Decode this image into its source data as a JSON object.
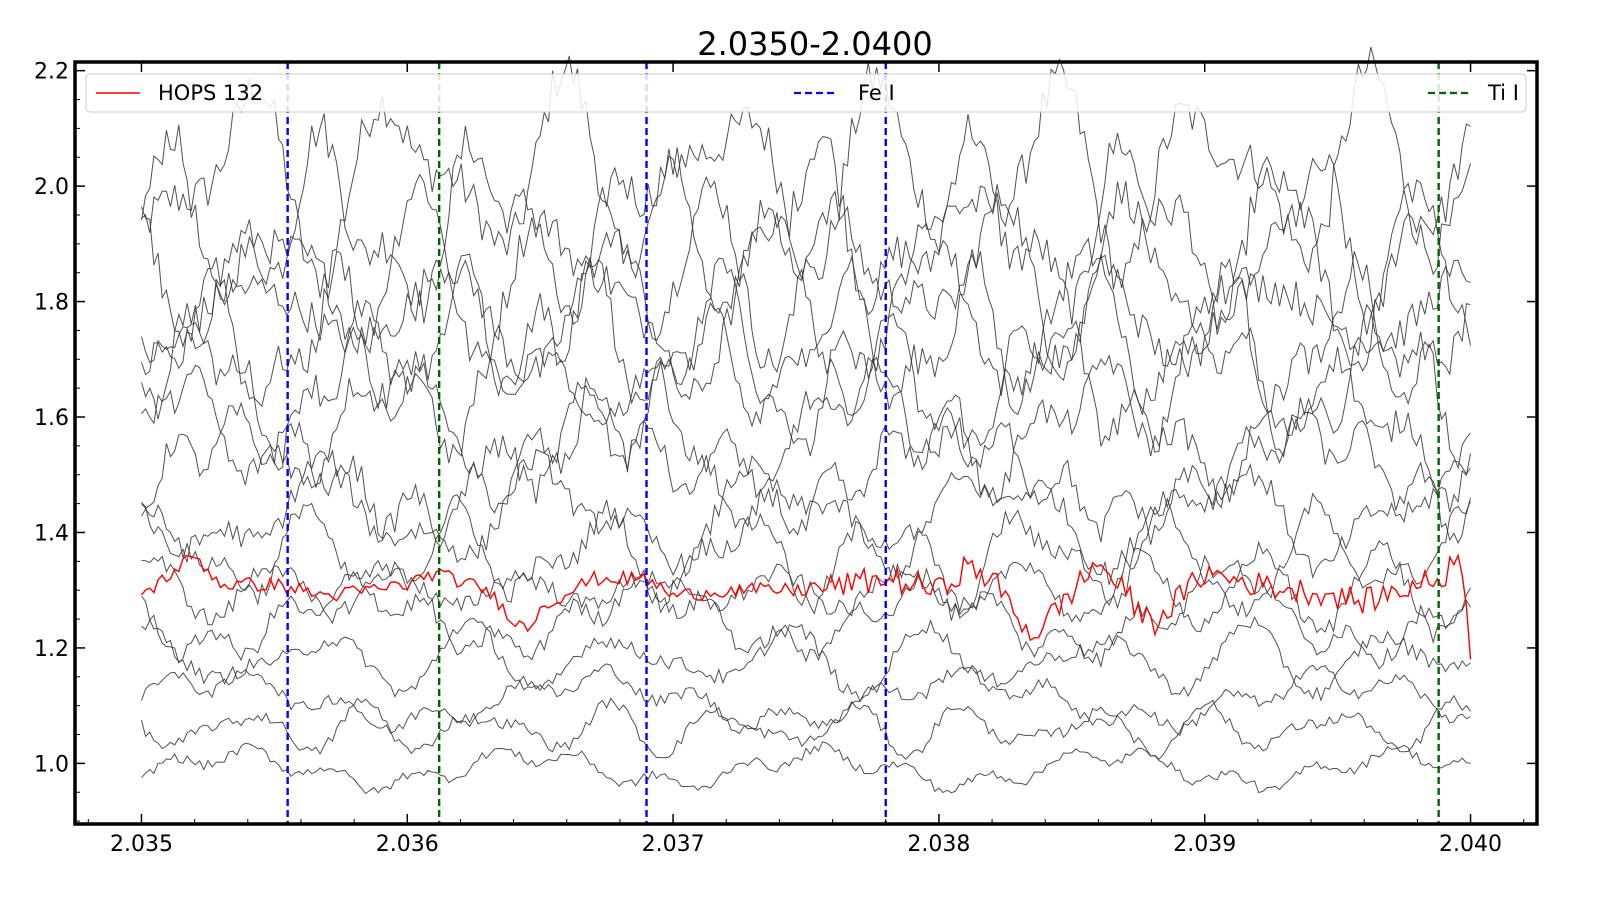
{
  "chart_data": {
    "type": "line",
    "title": "2.0350-2.0400",
    "xlabel": "",
    "ylabel": "",
    "xlim": [
      2.03475,
      2.04025
    ],
    "ylim": [
      0.895,
      2.215
    ],
    "xticks": [
      2.035,
      2.036,
      2.037,
      2.038,
      2.039,
      2.04
    ],
    "xtick_labels": [
      "2.035",
      "2.036",
      "2.037",
      "2.038",
      "2.039",
      "2.040"
    ],
    "yticks": [
      1.0,
      1.2,
      1.4,
      1.6,
      1.8,
      2.0,
      2.2
    ],
    "ytick_labels": [
      "1.0",
      "1.2",
      "1.4",
      "1.6",
      "1.8",
      "2.0",
      "2.2"
    ],
    "grid": false,
    "legend_placement": "top, full width",
    "legend": [
      {
        "label": "HOPS 132",
        "color": "#ff0000",
        "style": "solid"
      },
      {
        "label": "Fe I",
        "color": "#0000ff",
        "style": "dashed"
      },
      {
        "label": "Ti I",
        "color": "#006400",
        "style": "dashed"
      }
    ],
    "highlight_series": {
      "name": "HOPS 132",
      "color": "#ff0000",
      "x_range": [
        2.035,
        2.04
      ],
      "keypoints": [
        [
          2.035,
          1.29
        ],
        [
          2.0352,
          1.36
        ],
        [
          2.0353,
          1.31
        ],
        [
          2.0355,
          1.31
        ],
        [
          2.0357,
          1.29
        ],
        [
          2.036,
          1.31
        ],
        [
          2.0361,
          1.33
        ],
        [
          2.0363,
          1.3
        ],
        [
          2.0364,
          1.25
        ],
        [
          2.03645,
          1.23
        ],
        [
          2.0365,
          1.27
        ],
        [
          2.0367,
          1.32
        ],
        [
          2.0369,
          1.32
        ],
        [
          2.037,
          1.29
        ],
        [
          2.0372,
          1.3
        ],
        [
          2.0375,
          1.3
        ],
        [
          2.0378,
          1.32
        ],
        [
          2.038,
          1.3
        ],
        [
          2.0381,
          1.34
        ],
        [
          2.0382,
          1.32
        ],
        [
          2.03835,
          1.22
        ],
        [
          2.03845,
          1.27
        ],
        [
          2.0386,
          1.35
        ],
        [
          2.0388,
          1.24
        ],
        [
          2.039,
          1.33
        ],
        [
          2.0392,
          1.31
        ],
        [
          2.0395,
          1.29
        ],
        [
          2.0396,
          1.28
        ],
        [
          2.0398,
          1.31
        ],
        [
          2.0399,
          1.32
        ],
        [
          2.03995,
          1.38
        ],
        [
          2.04,
          1.2
        ]
      ]
    },
    "background_series": [
      {
        "color": "#333333",
        "baseline": 2.02
      },
      {
        "color": "#333333",
        "baseline": 1.93
      },
      {
        "color": "#333333",
        "baseline": 1.85
      },
      {
        "color": "#333333",
        "baseline": 1.78
      },
      {
        "color": "#333333",
        "baseline": 1.73
      },
      {
        "color": "#333333",
        "baseline": 1.66
      },
      {
        "color": "#333333",
        "baseline": 1.58
      },
      {
        "color": "#333333",
        "baseline": 1.5
      },
      {
        "color": "#333333",
        "baseline": 1.43
      },
      {
        "color": "#333333",
        "baseline": 1.36
      },
      {
        "color": "#333333",
        "baseline": 1.3
      },
      {
        "color": "#333333",
        "baseline": 1.25
      },
      {
        "color": "#333333",
        "baseline": 1.18
      },
      {
        "color": "#333333",
        "baseline": 1.11
      },
      {
        "color": "#333333",
        "baseline": 1.06
      },
      {
        "color": "#333333",
        "baseline": 0.99
      }
    ],
    "vertical_lines": [
      {
        "series": "Fe I",
        "x": 2.03555,
        "color": "#0000ff"
      },
      {
        "series": "Ti I",
        "x": 2.03612,
        "color": "#006400"
      },
      {
        "series": "Fe I",
        "x": 2.0369,
        "color": "#0000ff"
      },
      {
        "series": "Fe I",
        "x": 2.0378,
        "color": "#0000ff"
      },
      {
        "series": "Ti I",
        "x": 2.03988,
        "color": "#006400"
      }
    ]
  }
}
